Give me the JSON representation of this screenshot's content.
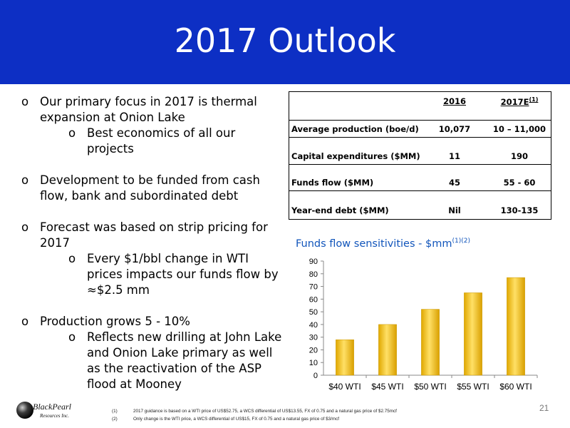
{
  "header": {
    "title": "2017 Outlook",
    "bar_color": "#0d2fc4"
  },
  "bullets": [
    {
      "text": "Our primary focus in 2017 is thermal expansion at Onion Lake",
      "subs": [
        "Best economics of all our projects"
      ]
    },
    {
      "text": "Development to be funded from cash flow, bank and subordinated debt",
      "subs": []
    },
    {
      "text": "Forecast was based on strip pricing for 2017",
      "subs": [
        "Every $1/bbl change in WTI prices impacts our funds flow by ≈$2.5 mm"
      ]
    },
    {
      "text": "Production grows 5 - 10%",
      "subs": [
        "Reflects new drilling at John Lake and Onion Lake primary as well as the reactivation of the ASP flood at Mooney"
      ]
    }
  ],
  "bullet_marker": "o",
  "table": {
    "col_2016": "2016",
    "col_2017": "2017E",
    "col_2017_note": "(1)",
    "rows": [
      {
        "label": "Average production (boe/d)",
        "v2016": "10,077",
        "v2017": "10 – 11,000"
      },
      {
        "label": "Capital expenditures ($MM)",
        "v2016": "11",
        "v2017": "190"
      },
      {
        "label": "Funds flow  ($MM)",
        "v2016": "45",
        "v2017": "55 - 60"
      },
      {
        "label": "Year-end debt ($MM)",
        "v2016": "Nil",
        "v2017": "130-135"
      }
    ]
  },
  "chart_title": {
    "text": "Funds flow sensitivities - $mm",
    "note": "(1)(2)"
  },
  "chart_data": {
    "type": "bar",
    "categories": [
      "$40 WTI",
      "$45 WTI",
      "$50 WTI",
      "$55 WTI",
      "$60 WTI"
    ],
    "values": [
      28,
      40,
      52,
      65,
      77
    ],
    "ylim": [
      0,
      90
    ],
    "yticks": [
      "0",
      "10",
      "20",
      "30",
      "40",
      "50",
      "60",
      "70",
      "80",
      "90"
    ],
    "bar_color": "#f5c400",
    "grid": false
  },
  "logo": {
    "line1": "BlackPearl",
    "line2": "Resources Inc."
  },
  "footnotes": [
    {
      "num": "(1)",
      "text": "2017 guidance is based on a WTI price of US$52.75, a WCS differential of US$13.55, FX of 0.75 and a natural gas price of $2.75mcf"
    },
    {
      "num": "(2)",
      "text": "Only change is the WTI price, a WCS differential of US$15, FX of 0.75 and a natural gas price of $3/mcf"
    }
  ],
  "page_number": "21"
}
